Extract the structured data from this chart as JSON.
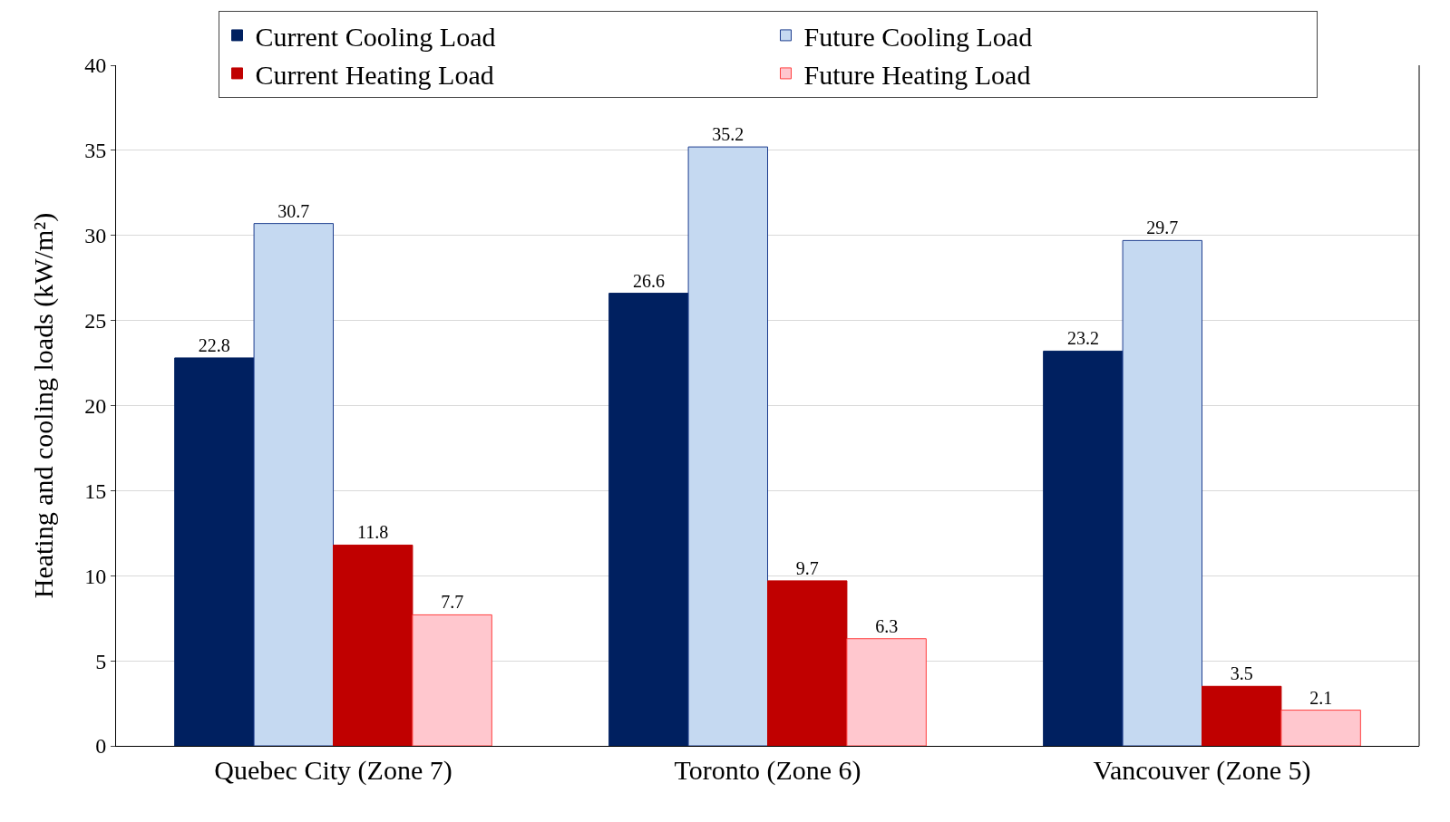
{
  "chart_data": {
    "type": "bar",
    "ylabel": "Heating and cooling loads (kW/m²)",
    "categories": [
      "Quebec City (Zone 7)",
      "Toronto (Zone 6)",
      "Vancouver (Zone 5)"
    ],
    "series": [
      {
        "name": "Current Cooling Load",
        "color": "#002060",
        "values": [
          22.8,
          26.6,
          23.2
        ]
      },
      {
        "name": "Future Cooling Load",
        "color": "#c5d9f1",
        "values": [
          30.7,
          35.2,
          29.7
        ]
      },
      {
        "name": "Current Heating Load",
        "color": "#c00000",
        "values": [
          11.8,
          9.7,
          3.5
        ]
      },
      {
        "name": "Future Heating Load",
        "color": "#ffc7ce",
        "values": [
          7.7,
          6.3,
          2.1
        ]
      }
    ],
    "ylim": [
      0,
      40
    ],
    "yticks": [
      0,
      5,
      10,
      15,
      20,
      25,
      30,
      35,
      40
    ],
    "grid": "y",
    "legend": "top",
    "data_labels": true
  }
}
